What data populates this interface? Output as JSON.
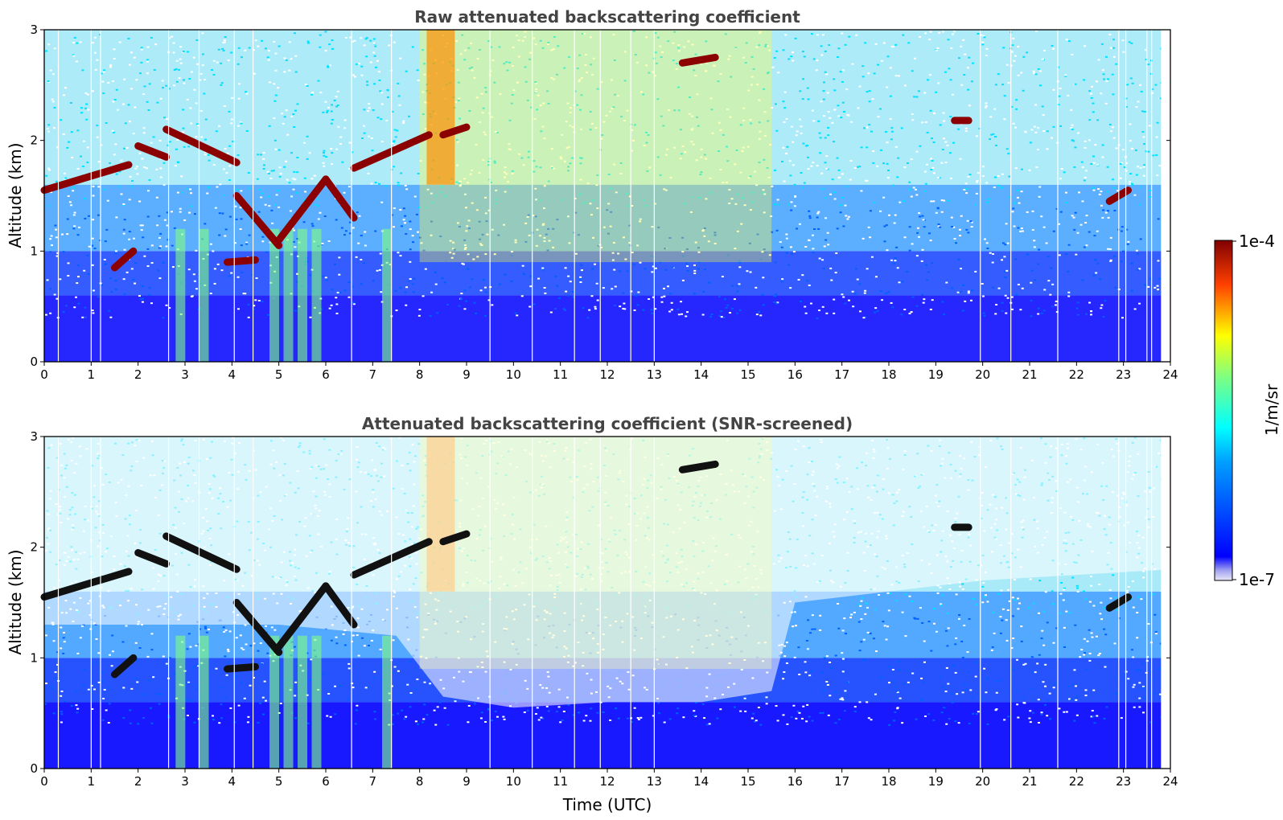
{
  "chart_data": [
    {
      "type": "heatmap",
      "title": "Raw attenuated backscattering coefficient",
      "xlabel": "",
      "ylabel": "Altitude (km)",
      "xlim": [
        0,
        24
      ],
      "ylim": [
        0,
        3
      ],
      "x_ticks": [
        "0",
        "1",
        "2",
        "3",
        "4",
        "5",
        "6",
        "7",
        "8",
        "9",
        "10",
        "11",
        "12",
        "13",
        "14",
        "15",
        "16",
        "17",
        "18",
        "19",
        "20",
        "21",
        "22",
        "23",
        "24"
      ],
      "y_ticks": [
        "0",
        "1",
        "2",
        "3"
      ],
      "cloud_layers": [
        {
          "t_start": 0.0,
          "t_end": 1.8,
          "alt_start": 1.55,
          "alt_end": 1.78
        },
        {
          "t_start": 2.0,
          "t_end": 2.6,
          "alt_start": 1.95,
          "alt_end": 1.85
        },
        {
          "t_start": 2.6,
          "t_end": 4.1,
          "alt_start": 2.1,
          "alt_end": 1.8
        },
        {
          "t_start": 4.1,
          "t_end": 5.0,
          "alt_start": 1.5,
          "alt_end": 1.05
        },
        {
          "t_start": 5.0,
          "t_end": 6.0,
          "alt_start": 1.1,
          "alt_end": 1.65
        },
        {
          "t_start": 6.0,
          "t_end": 6.6,
          "alt_start": 1.65,
          "alt_end": 1.3
        },
        {
          "t_start": 6.6,
          "t_end": 8.2,
          "alt_start": 1.75,
          "alt_end": 2.05
        },
        {
          "t_start": 1.5,
          "t_end": 1.9,
          "alt_start": 0.85,
          "alt_end": 1.0
        },
        {
          "t_start": 3.9,
          "t_end": 4.5,
          "alt_start": 0.9,
          "alt_end": 0.92
        },
        {
          "t_start": 8.5,
          "t_end": 9.0,
          "alt_start": 2.05,
          "alt_end": 2.12
        },
        {
          "t_start": 13.6,
          "t_end": 14.3,
          "alt_start": 2.7,
          "alt_end": 2.75
        },
        {
          "t_start": 19.4,
          "t_end": 19.7,
          "alt_start": 2.18,
          "alt_end": 2.18
        },
        {
          "t_start": 22.7,
          "t_end": 23.1,
          "alt_start": 1.45,
          "alt_end": 1.55
        }
      ]
    },
    {
      "type": "heatmap",
      "title": "Attenuated backscattering coefficient (SNR-screened)",
      "xlabel": "Time (UTC)",
      "ylabel": "Altitude (km)",
      "xlim": [
        0,
        24
      ],
      "ylim": [
        0,
        3
      ],
      "x_ticks": [
        "0",
        "1",
        "2",
        "3",
        "4",
        "5",
        "6",
        "7",
        "8",
        "9",
        "10",
        "11",
        "12",
        "13",
        "14",
        "15",
        "16",
        "17",
        "18",
        "19",
        "20",
        "21",
        "22",
        "23",
        "24"
      ],
      "y_ticks": [
        "0",
        "1",
        "2",
        "3"
      ],
      "screened_out_boundary": [
        {
          "t": 0,
          "alt": 1.3
        },
        {
          "t": 2,
          "alt": 1.3
        },
        {
          "t": 5,
          "alt": 1.3
        },
        {
          "t": 7.5,
          "alt": 1.2
        },
        {
          "t": 8.5,
          "alt": 0.65
        },
        {
          "t": 10,
          "alt": 0.55
        },
        {
          "t": 12,
          "alt": 0.6
        },
        {
          "t": 14,
          "alt": 0.6
        },
        {
          "t": 15.5,
          "alt": 0.7
        },
        {
          "t": 16,
          "alt": 1.5
        },
        {
          "t": 20,
          "alt": 1.7
        },
        {
          "t": 24,
          "alt": 1.8
        }
      ]
    }
  ],
  "colorbar": {
    "label": "1/m/sr",
    "max_label": "1e-4",
    "min_label": "1e-7",
    "scale": "log",
    "colormap": "jet"
  },
  "colors": {
    "jet_dark_red": "#7f0000",
    "jet_red": "#ff0000",
    "jet_yellow": "#ffff00",
    "jet_cyan": "#00ffff",
    "jet_blue": "#0000ff",
    "title_gray": "#444444"
  }
}
